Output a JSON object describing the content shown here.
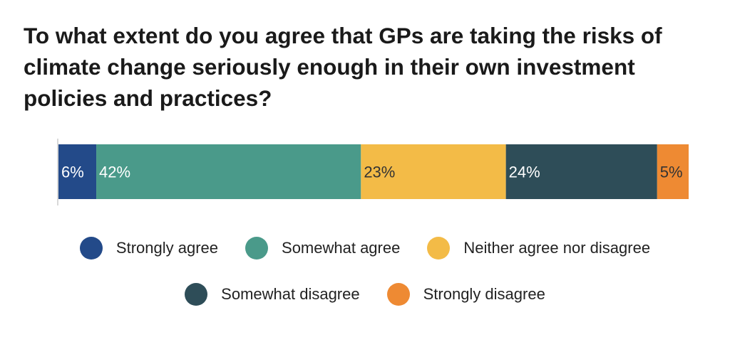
{
  "chart_data": {
    "type": "bar",
    "orientation": "horizontal-stacked-100",
    "title": "To what extent do you agree that GPs are taking the risks of climate change seriously enough in their own investment policies and practices?",
    "xlabel": "",
    "ylabel": "",
    "xlim": [
      0,
      100
    ],
    "grid": false,
    "legend_position": "bottom",
    "series": [
      {
        "name": "Strongly agree",
        "value": 6,
        "label": "6%",
        "color": "#234a89",
        "label_color": "#ffffff"
      },
      {
        "name": "Somewhat agree",
        "value": 42,
        "label": "42%",
        "color": "#4a9a8a",
        "label_color": "#ffffff"
      },
      {
        "name": "Neither agree nor disagree",
        "value": 23,
        "label": "23%",
        "color": "#f3bb47",
        "label_color": "#333333"
      },
      {
        "name": "Somewhat disagree",
        "value": 24,
        "label": "24%",
        "color": "#2e4d58",
        "label_color": "#ffffff"
      },
      {
        "name": "Strongly disagree",
        "value": 5,
        "label": "5%",
        "color": "#ee8a33",
        "label_color": "#333333"
      }
    ]
  }
}
